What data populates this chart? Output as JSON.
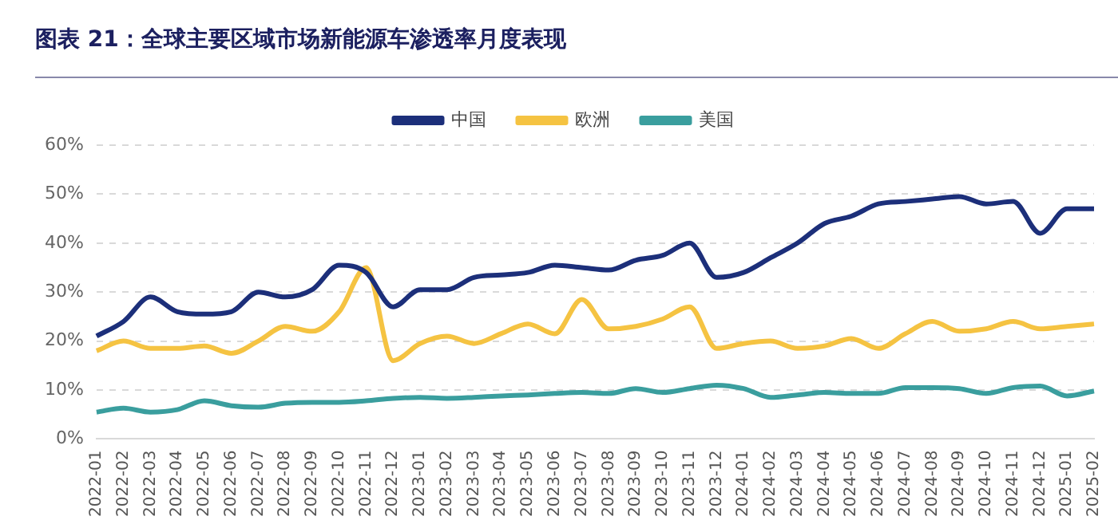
{
  "chart_data": {
    "type": "line",
    "title": "图表 21：全球主要区域市场新能源车渗透率月度表现",
    "categories": [
      "2022-01",
      "2022-02",
      "2022-03",
      "2022-04",
      "2022-05",
      "2022-06",
      "2022-07",
      "2022-08",
      "2022-09",
      "2022-10",
      "2022-11",
      "2022-12",
      "2023-01",
      "2023-02",
      "2023-03",
      "2023-04",
      "2023-05",
      "2023-06",
      "2023-07",
      "2023-08",
      "2023-09",
      "2023-10",
      "2023-11",
      "2023-12",
      "2024-01",
      "2024-02",
      "2024-03",
      "2024-04",
      "2024-05",
      "2024-06",
      "2024-07",
      "2024-08",
      "2024-09",
      "2024-10",
      "2024-11",
      "2024-12",
      "2025-01",
      "2025-02"
    ],
    "series": [
      {
        "name": "中国",
        "color": "#1c2f7a",
        "values": [
          21,
          24,
          29,
          26,
          25.5,
          26,
          30,
          29,
          30.5,
          35.5,
          34,
          27,
          30.5,
          30.5,
          33,
          33.5,
          34,
          35.5,
          35,
          34.5,
          36.5,
          37.5,
          40,
          33,
          34,
          37,
          40,
          44,
          45.5,
          48,
          48.5,
          49,
          49.5,
          48,
          48.5,
          42,
          47,
          47
        ]
      },
      {
        "name": "欧洲",
        "color": "#f5c342",
        "values": [
          18,
          20,
          18.5,
          18.5,
          19,
          17.5,
          20,
          23,
          22,
          26,
          35,
          16,
          19.5,
          21,
          19.5,
          21.5,
          23.5,
          21.5,
          28.5,
          22.5,
          23,
          24.5,
          27,
          18.5,
          19.5,
          20,
          18.5,
          19,
          20.5,
          18.5,
          21.5,
          24,
          22,
          22.5,
          24,
          22.5,
          23,
          23.5
        ]
      },
      {
        "name": "美国",
        "color": "#3a9e9e",
        "values": [
          5.5,
          6.3,
          5.5,
          6,
          7.8,
          6.8,
          6.5,
          7.3,
          7.5,
          7.5,
          7.8,
          8.3,
          8.5,
          8.3,
          8.5,
          8.8,
          9,
          9.3,
          9.5,
          9.3,
          10.3,
          9.5,
          10.3,
          11,
          10.3,
          8.5,
          9,
          9.5,
          9.3,
          9.3,
          10.5,
          10.5,
          10.3,
          9.3,
          10.5,
          10.8,
          8.8,
          9.8
        ]
      }
    ],
    "ylim": [
      0,
      60
    ],
    "yticks": [
      {
        "value": 0,
        "label": "0%"
      },
      {
        "value": 10,
        "label": "10%"
      },
      {
        "value": 20,
        "label": "20%"
      },
      {
        "value": 30,
        "label": "30%"
      },
      {
        "value": 40,
        "label": "40%"
      },
      {
        "value": 50,
        "label": "50%"
      },
      {
        "value": 60,
        "label": "60%"
      }
    ],
    "grid": "y",
    "legend": "top",
    "marker": "none",
    "line_style": "solid"
  }
}
